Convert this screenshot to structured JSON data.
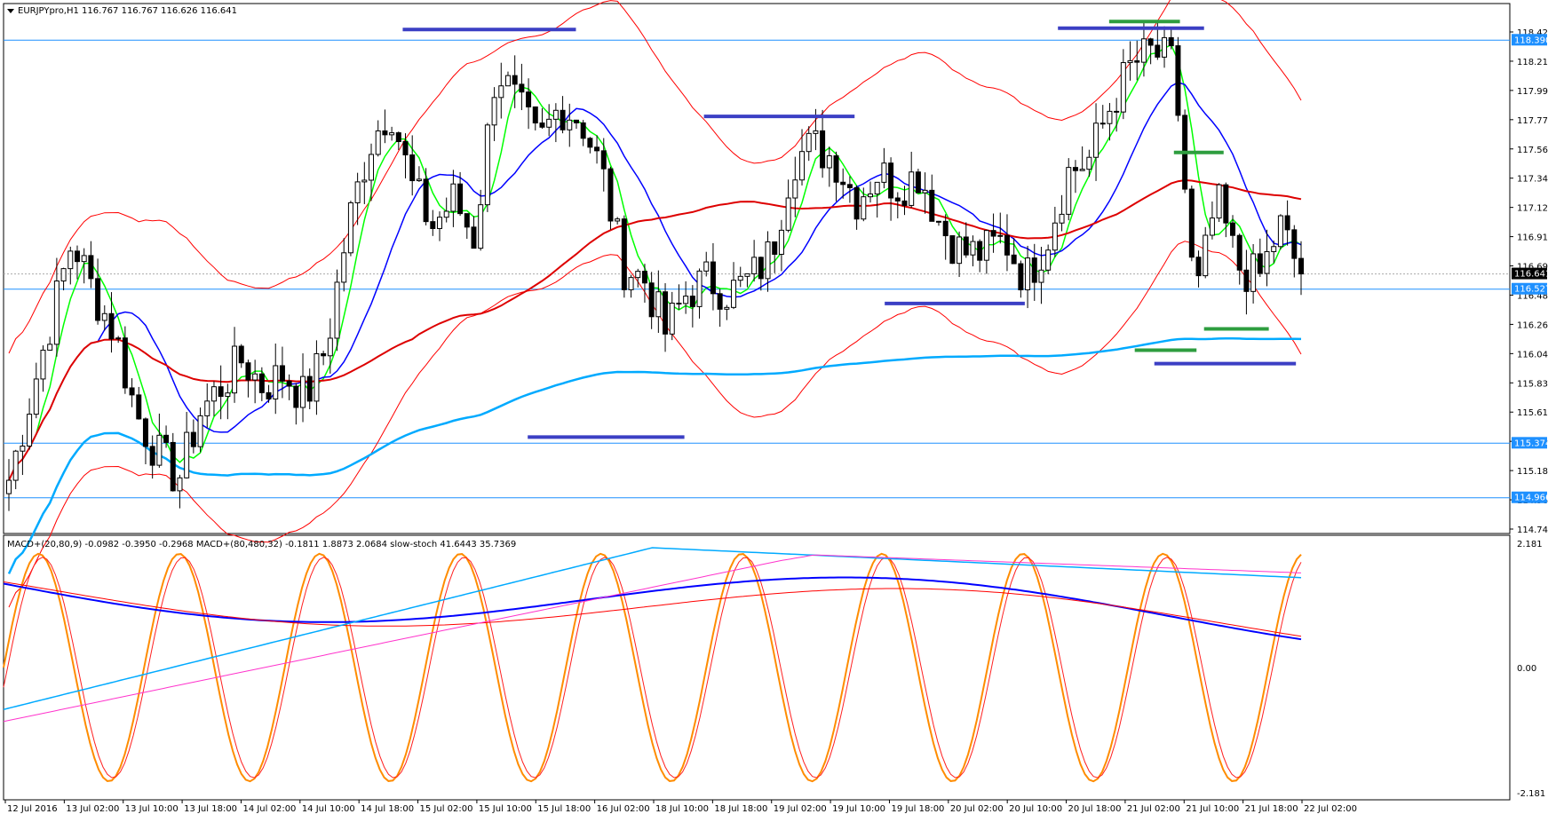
{
  "main": {
    "header": "EURJPYpro,H1  116.767 116.767 116.626 116.641",
    "price_labels": [
      "118.425",
      "118.210",
      "117.999",
      "117.775",
      "117.560",
      "117.345",
      "117.125",
      "116.910",
      "116.695",
      "116.480",
      "116.260",
      "116.045",
      "115.830",
      "115.610",
      "115.395",
      "115.180",
      "114.965",
      "114.745"
    ],
    "hline_labels": [
      "118.390",
      "116.527",
      "115.374",
      "114.966"
    ],
    "current_price": "116.641",
    "colors": {
      "up": "#ffffff",
      "down": "#000000",
      "bb": "#ff0000",
      "ma_fast": "#00ff00",
      "ma_mid": "#0000ff",
      "ma_slow": "#dd0000",
      "ma_long": "#00aaff",
      "hline": "#1e90ff",
      "levels_blue": "#3b3fc4",
      "levels_green": "#2e9d3f"
    }
  },
  "indicator": {
    "header": "MACD+(20,80,9) -0.0982 -0.3950 -0.2968  MACD+(80,480,32) -0.1811 1.8873 2.0684  slow-stoch 41.6443 35.7369",
    "scale_labels": [
      "2.181",
      "0.00",
      "-2.181"
    ]
  },
  "time_labels": [
    "12 Jul 2016",
    "13 Jul 02:00",
    "13 Jul 10:00",
    "13 Jul 18:00",
    "14 Jul 02:00",
    "14 Jul 10:00",
    "14 Jul 18:00",
    "15 Jul 02:00",
    "15 Jul 10:00",
    "15 Jul 18:00",
    "16 Jul 02:00",
    "18 Jul 10:00",
    "18 Jul 18:00",
    "19 Jul 02:00",
    "19 Jul 10:00",
    "19 Jul 18:00",
    "20 Jul 02:00",
    "20 Jul 10:00",
    "20 Jul 18:00",
    "21 Jul 02:00",
    "21 Jul 10:00",
    "21 Jul 18:00",
    "22 Jul 02:00"
  ],
  "chart_data": {
    "type": "candlestick",
    "symbol": "EURJPYpro",
    "timeframe": "H1",
    "y_range": [
      114.745,
      118.425
    ],
    "horizontal_lines": [
      118.39,
      116.527,
      115.374,
      114.966
    ],
    "close_path": [
      115.1,
      115.7,
      116.3,
      116.9,
      116.5,
      116.2,
      115.6,
      115.3,
      115.1,
      115.6,
      115.8,
      116.0,
      115.8,
      115.9,
      115.7,
      116.1,
      117.0,
      117.6,
      117.9,
      117.3,
      117.0,
      117.2,
      116.9,
      118.2,
      117.9,
      117.6,
      117.9,
      117.8,
      117.4,
      116.7,
      116.6,
      116.2,
      116.5,
      116.6,
      116.5,
      116.6,
      116.8,
      117.5,
      117.6,
      117.5,
      117.2,
      117.4,
      117.3,
      117.4,
      117.0,
      116.8,
      116.8,
      116.9,
      116.6,
      116.9,
      117.4,
      117.5,
      117.9,
      118.2,
      118.3,
      118.2,
      116.4,
      117.2,
      116.7,
      116.6,
      117.0,
      116.64
    ],
    "annotation_levels": [
      {
        "color": "blue",
        "price": 118.47,
        "from": 0.265,
        "to": 0.38
      },
      {
        "color": "blue",
        "price": 117.82,
        "from": 0.465,
        "to": 0.565
      },
      {
        "color": "blue",
        "price": 116.42,
        "from": 0.585,
        "to": 0.678
      },
      {
        "color": "blue",
        "price": 115.42,
        "from": 0.348,
        "to": 0.452
      },
      {
        "color": "blue",
        "price": 118.48,
        "from": 0.7,
        "to": 0.797
      },
      {
        "color": "green",
        "price": 118.53,
        "from": 0.734,
        "to": 0.781
      },
      {
        "color": "green",
        "price": 117.55,
        "from": 0.777,
        "to": 0.81
      },
      {
        "color": "green",
        "price": 116.23,
        "from": 0.797,
        "to": 0.84
      },
      {
        "color": "green",
        "price": 116.07,
        "from": 0.751,
        "to": 0.792
      },
      {
        "color": "blue",
        "price": 115.97,
        "from": 0.764,
        "to": 0.858
      }
    ]
  }
}
